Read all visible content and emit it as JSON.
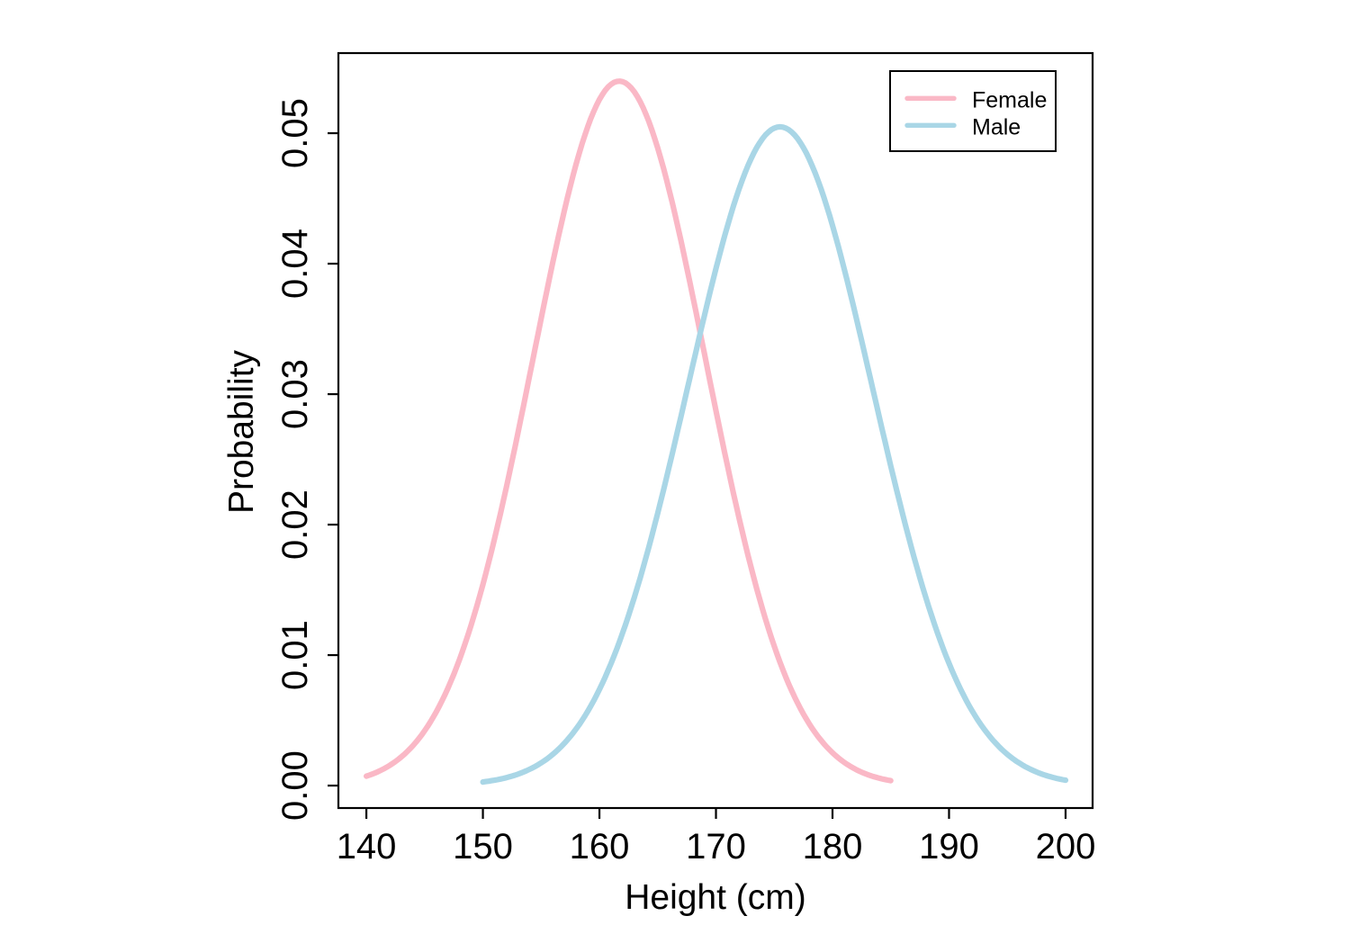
{
  "chart_data": {
    "type": "line",
    "title": "",
    "xlabel": "Height (cm)",
    "ylabel": "Probability",
    "x_ticks": [
      {
        "v": 140,
        "label": "140"
      },
      {
        "v": 150,
        "label": "150"
      },
      {
        "v": 160,
        "label": "160"
      },
      {
        "v": 170,
        "label": "170"
      },
      {
        "v": 180,
        "label": "180"
      },
      {
        "v": 190,
        "label": "190"
      },
      {
        "v": 200,
        "label": "200"
      }
    ],
    "y_ticks": [
      {
        "v": 0.0,
        "label": "0.00"
      },
      {
        "v": 0.01,
        "label": "0.01"
      },
      {
        "v": 0.02,
        "label": "0.02"
      },
      {
        "v": 0.03,
        "label": "0.03"
      },
      {
        "v": 0.04,
        "label": "0.04"
      },
      {
        "v": 0.05,
        "label": "0.05"
      }
    ],
    "xlim": [
      137.6,
      202.32
    ],
    "ylim": [
      -0.00172,
      0.05614
    ],
    "grid": false,
    "legend_position": "top-right",
    "series": [
      {
        "name": "Female",
        "color": "#FAB8C6",
        "distribution": "normal",
        "mean": 161.7,
        "sd": 7.39,
        "peak": 0.05399,
        "x_range": [
          140,
          185
        ],
        "sample_x": [
          140,
          145,
          150,
          155,
          160,
          165,
          170,
          175,
          180,
          185
        ],
        "sample_y": [
          0.00072,
          0.0042,
          0.0154,
          0.0358,
          0.0526,
          0.0489,
          0.0287,
          0.0107,
          0.0025,
          0.00037
        ]
      },
      {
        "name": "Male",
        "color": "#A9D6E6",
        "distribution": "normal",
        "mean": 175.5,
        "sd": 7.9,
        "peak": 0.05049,
        "x_range": [
          150,
          200
        ],
        "sample_x": [
          150,
          155,
          160,
          165,
          170,
          175,
          180,
          185,
          190,
          195,
          200
        ],
        "sample_y": [
          0.00028,
          0.0017,
          0.0074,
          0.0209,
          0.0396,
          0.0504,
          0.0429,
          0.0245,
          0.0094,
          0.0024,
          0.00041
        ]
      }
    ],
    "axis_color": "#000000"
  }
}
